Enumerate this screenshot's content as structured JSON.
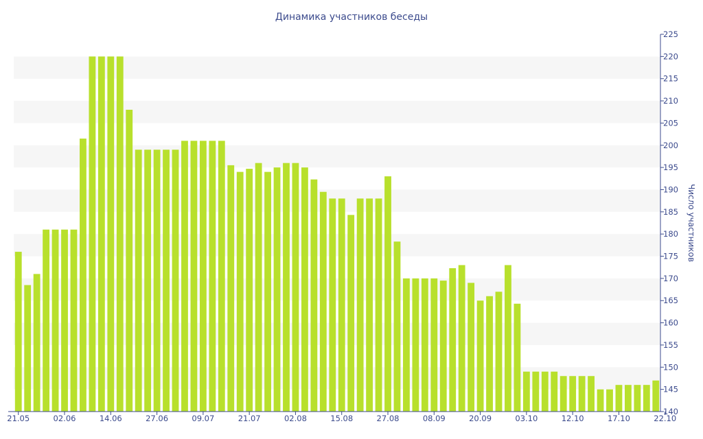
{
  "chart_data": {
    "type": "bar",
    "title": "Динамика участников беседы",
    "ylabel": "Число участников",
    "xlabel": "",
    "ylim": [
      140,
      225
    ],
    "yticks": [
      140,
      145,
      150,
      155,
      160,
      165,
      170,
      175,
      180,
      185,
      190,
      195,
      200,
      205,
      210,
      215,
      220,
      225
    ],
    "x_tick_labels": [
      {
        "index": 0,
        "label": "21.05"
      },
      {
        "index": 5,
        "label": "02.06"
      },
      {
        "index": 10,
        "label": "14.06"
      },
      {
        "index": 15,
        "label": "27.06"
      },
      {
        "index": 20,
        "label": "09.07"
      },
      {
        "index": 25,
        "label": "21.07"
      },
      {
        "index": 30,
        "label": "02.08"
      },
      {
        "index": 35,
        "label": "15.08"
      },
      {
        "index": 40,
        "label": "27.08"
      },
      {
        "index": 45,
        "label": "08.09"
      },
      {
        "index": 50,
        "label": "20.09"
      },
      {
        "index": 55,
        "label": "03.10"
      },
      {
        "index": 60,
        "label": "12.10"
      },
      {
        "index": 65,
        "label": "17.10"
      },
      {
        "index": 70,
        "label": "22.10"
      }
    ],
    "values": [
      176,
      168.5,
      171,
      181,
      181,
      181,
      181,
      201.5,
      220,
      220,
      220,
      220,
      208,
      199,
      199,
      199,
      199,
      199,
      201,
      201,
      201,
      201,
      201,
      195.5,
      194,
      194.7,
      196,
      194,
      195,
      196,
      196,
      195,
      192.3,
      189.5,
      188,
      188,
      184.3,
      188,
      188,
      188,
      193,
      178.3,
      170,
      170,
      170,
      170,
      169.5,
      172.3,
      173,
      169,
      165,
      166,
      167,
      173,
      164.3,
      149,
      149,
      149,
      149,
      148,
      148,
      148,
      148,
      145,
      145,
      146,
      146,
      146,
      146,
      147
    ],
    "grid": "alternating horizontal bands",
    "y_axis_side": "right",
    "bar_color": "#b8e02c",
    "band_color": "#f6f6f6",
    "text_color": "#3b4a8c"
  }
}
